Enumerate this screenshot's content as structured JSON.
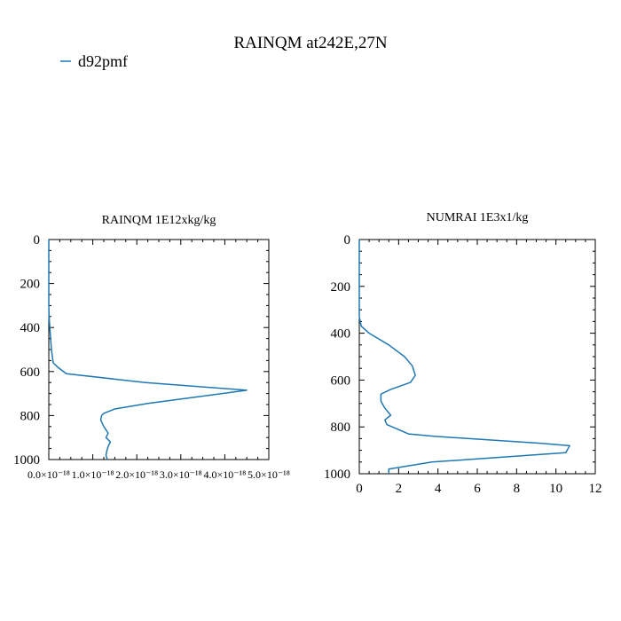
{
  "figure": {
    "title": "RAINQM at242E,27N",
    "legend": {
      "label": "d92pmf",
      "color": "#1f77b4",
      "placement": "top-left"
    }
  },
  "chart_data": [
    {
      "type": "line",
      "title": "RAINQM  1E12xkg/kg",
      "xlim": [
        0,
        5e-18
      ],
      "ylim": [
        1000,
        0
      ],
      "xticks": [
        0,
        1e-18,
        2e-18,
        3e-18,
        4e-18,
        5e-18
      ],
      "xtick_labels": [
        "0.0×10⁻¹⁸",
        "1.0×10⁻¹⁸",
        "2.0×10⁻¹⁸",
        "3.0×10⁻¹⁸",
        "4.0×10⁻¹⁸",
        "5.0×10⁻¹⁸"
      ],
      "yticks": [
        0,
        200,
        400,
        600,
        800,
        1000
      ],
      "ytick_labels": [
        "0",
        "200",
        "400",
        "600",
        "800",
        "1000"
      ],
      "series": [
        {
          "name": "d92pmf",
          "color": "#1f77b4",
          "x": [
            0,
            0,
            1e-20,
            3e-20,
            6e-20,
            1e-19,
            2e-19,
            4e-19,
            2.2e-18,
            4.5e-18,
            2.25e-18,
            1.5e-18,
            1.25e-18,
            1.2e-18,
            1.18e-18,
            1.25e-18,
            1.35e-18,
            1.3e-18,
            1.4e-18,
            1.35e-18,
            1.32e-18,
            1.3e-18,
            1.33e-18
          ],
          "y": [
            0,
            300,
            360,
            420,
            500,
            560,
            580,
            610,
            650,
            685,
            745,
            770,
            790,
            800,
            820,
            850,
            880,
            900,
            920,
            940,
            960,
            980,
            1000
          ]
        }
      ]
    },
    {
      "type": "line",
      "title": "NUMRAI  1E3x1/kg",
      "xlim": [
        0,
        12
      ],
      "ylim": [
        1000,
        0
      ],
      "xticks": [
        0,
        2,
        4,
        6,
        8,
        10,
        12
      ],
      "xtick_labels": [
        "0",
        "2",
        "4",
        "6",
        "8",
        "10",
        "12"
      ],
      "yticks": [
        0,
        200,
        400,
        600,
        800,
        1000
      ],
      "ytick_labels": [
        "0",
        "200",
        "400",
        "600",
        "800",
        "1000"
      ],
      "series": [
        {
          "name": "d92pmf",
          "color": "#1f77b4",
          "x": [
            0,
            0,
            0.1,
            0.5,
            1.5,
            2.3,
            2.7,
            2.85,
            2.6,
            1.6,
            1.1,
            1.1,
            1.3,
            1.6,
            1.3,
            1.4,
            2.5,
            3.8,
            9.2,
            10.7,
            10.5,
            3.7,
            1.5,
            1.5
          ],
          "y": [
            0,
            330,
            370,
            400,
            450,
            500,
            540,
            580,
            610,
            640,
            660,
            690,
            720,
            750,
            770,
            790,
            830,
            840,
            870,
            880,
            910,
            950,
            980,
            1000
          ]
        }
      ]
    }
  ]
}
